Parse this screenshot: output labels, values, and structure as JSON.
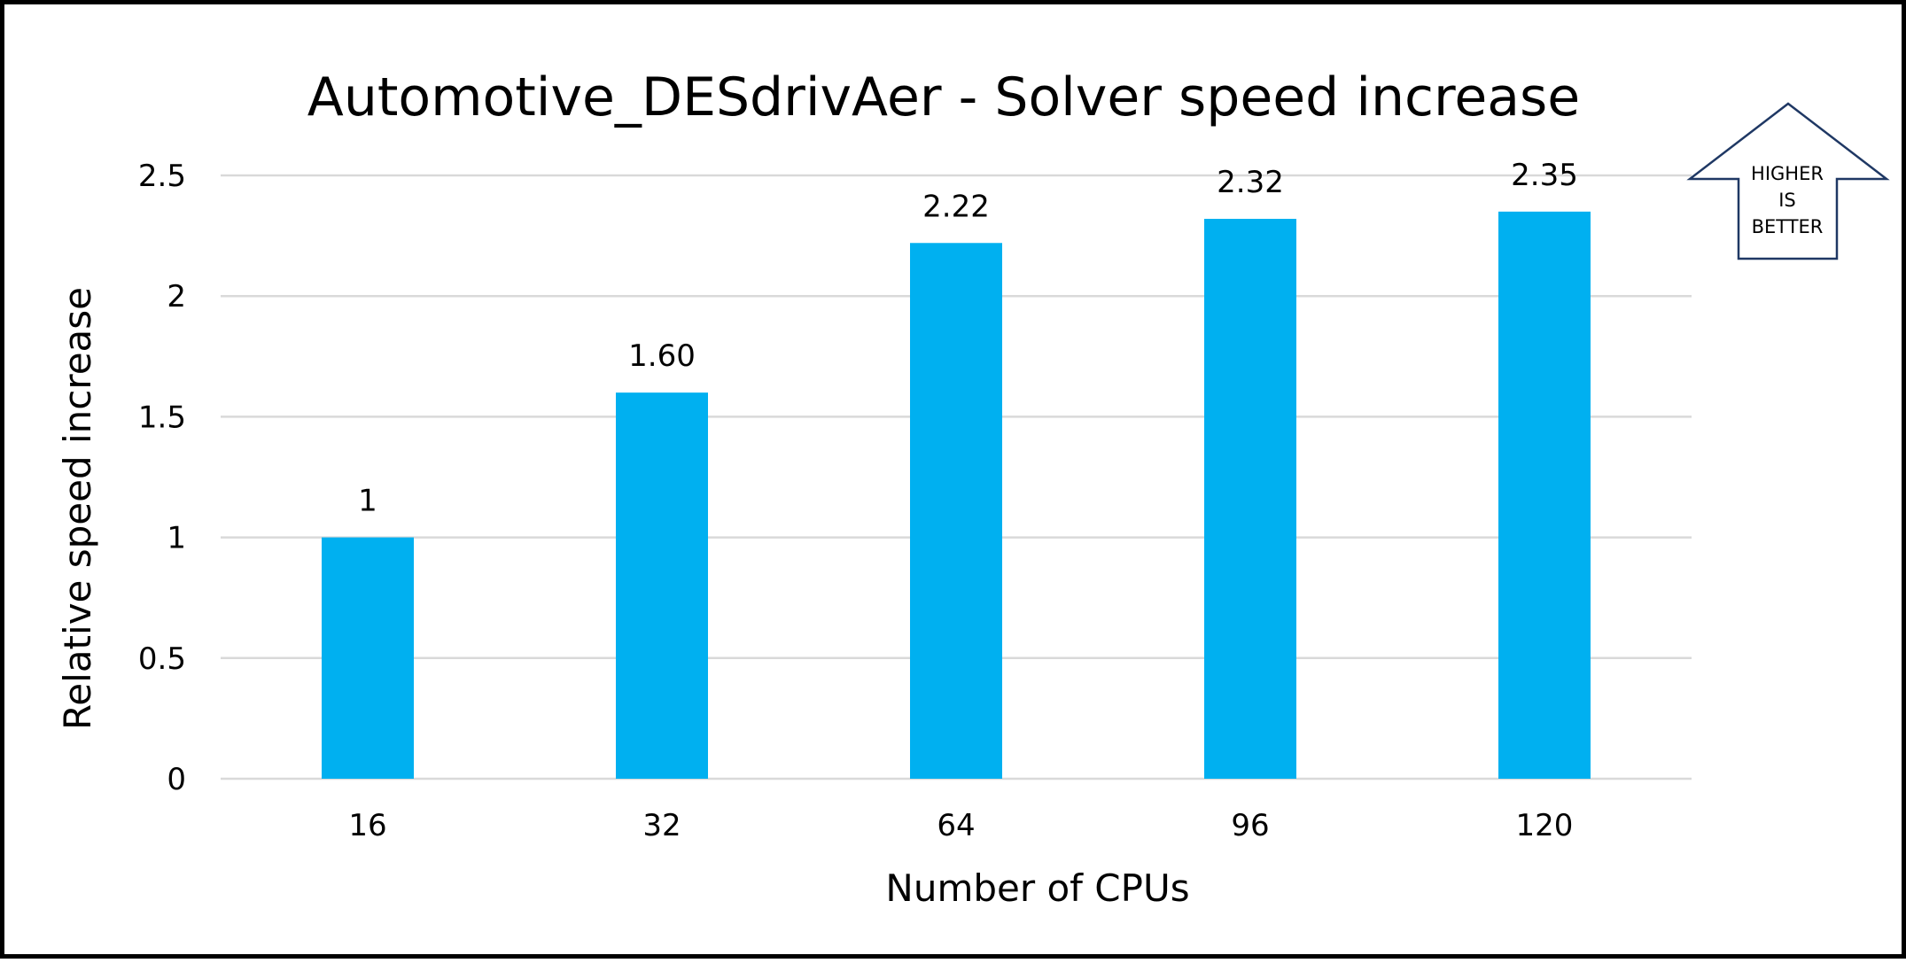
{
  "chart_data": {
    "type": "bar",
    "title": "Automotive_DESdrivAer - Solver speed increase",
    "xlabel": "Number of CPUs",
    "ylabel": "Relative speed increase",
    "categories": [
      "16",
      "32",
      "64",
      "96",
      "120"
    ],
    "values": [
      1,
      1.6,
      2.22,
      2.32,
      2.35
    ],
    "data_labels": [
      "1",
      "1.60",
      "2.22",
      "2.32",
      "2.35"
    ],
    "ylim": [
      0,
      2.5
    ],
    "yticks": [
      0,
      0.5,
      1,
      1.5,
      2,
      2.5
    ],
    "ytick_labels": [
      "0",
      "0.5",
      "1",
      "1.5",
      "2",
      "2.5"
    ],
    "grid": true,
    "legend": "none",
    "bar_color": "#00B0F0",
    "gridline_color": "#D9D9D9"
  },
  "badge": {
    "lines": [
      "HIGHER",
      "IS",
      "BETTER"
    ],
    "outline_color": "#1F3864"
  }
}
